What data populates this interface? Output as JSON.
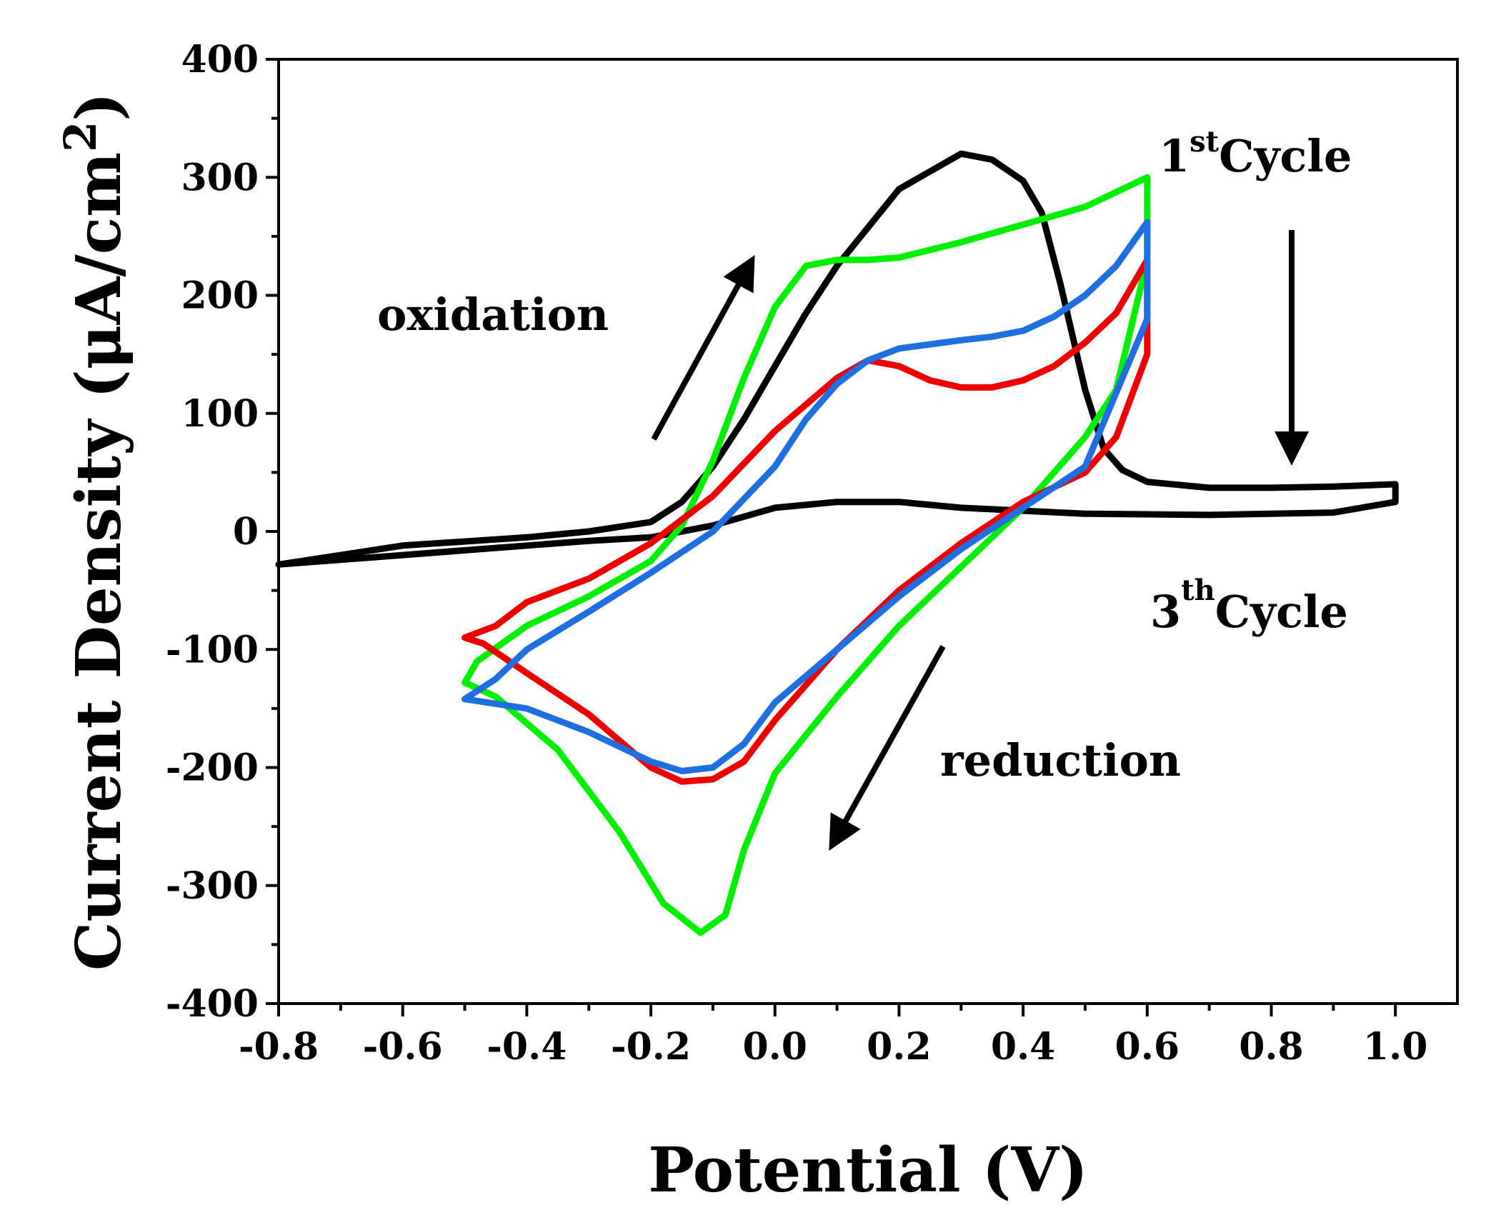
{
  "chart_data": {
    "type": "line",
    "title": "",
    "xlabel": "Potential (V)",
    "ylabel": "Current Density (μA/cm²)",
    "ylabel_parts": {
      "main": "Current Density (μA/cm",
      "sup": "2",
      "close": ")"
    },
    "xlim": [
      -0.8,
      1.1
    ],
    "ylim": [
      -400,
      400
    ],
    "x_ticks": [
      -0.8,
      -0.6,
      -0.4,
      -0.2,
      0.0,
      0.2,
      0.4,
      0.6,
      0.8,
      1.0
    ],
    "x_tick_labels": [
      "-0.8",
      "-0.6",
      "-0.4",
      "-0.2",
      "0.0",
      "0.2",
      "0.4",
      "0.6",
      "0.8",
      "1.0"
    ],
    "y_ticks": [
      -400,
      -300,
      -200,
      -100,
      0,
      100,
      200,
      300,
      400
    ],
    "y_tick_labels": [
      "-400",
      "-300",
      "-200",
      "-100",
      "0",
      "100",
      "200",
      "300",
      "400"
    ],
    "grid": false,
    "series": [
      {
        "name": "black",
        "color": "#000000",
        "x": [
          -0.8,
          -0.6,
          -0.4,
          -0.3,
          -0.2,
          -0.15,
          -0.1,
          -0.05,
          0.0,
          0.05,
          0.1,
          0.2,
          0.3,
          0.35,
          0.4,
          0.43,
          0.46,
          0.5,
          0.53,
          0.56,
          0.6,
          0.7,
          0.8,
          0.9,
          1.0,
          1.0,
          0.9,
          0.7,
          0.5,
          0.3,
          0.2,
          0.1,
          0.0,
          -0.1,
          -0.2,
          -0.3,
          -0.4,
          -0.6,
          -0.8
        ],
        "y": [
          -28,
          -12,
          -5,
          0,
          8,
          25,
          55,
          95,
          140,
          185,
          225,
          290,
          320,
          315,
          297,
          270,
          210,
          120,
          70,
          52,
          42,
          37,
          37,
          38,
          40,
          25,
          16,
          14,
          15,
          20,
          25,
          25,
          20,
          5,
          -5,
          -8,
          -12,
          -20,
          -28
        ]
      },
      {
        "name": "green",
        "color": "#00ee00",
        "x": [
          -0.5,
          -0.48,
          -0.4,
          -0.3,
          -0.2,
          -0.15,
          -0.1,
          -0.05,
          0.0,
          0.05,
          0.1,
          0.15,
          0.2,
          0.3,
          0.4,
          0.5,
          0.6,
          0.6,
          0.55,
          0.5,
          0.4,
          0.3,
          0.2,
          0.1,
          0.0,
          -0.05,
          -0.08,
          -0.12,
          -0.18,
          -0.25,
          -0.35,
          -0.45,
          -0.5
        ],
        "y": [
          -128,
          -110,
          -80,
          -55,
          -25,
          5,
          60,
          130,
          190,
          225,
          230,
          230,
          232,
          245,
          260,
          275,
          300,
          230,
          120,
          80,
          20,
          -30,
          -80,
          -140,
          -205,
          -270,
          -325,
          -340,
          -315,
          -255,
          -185,
          -140,
          -128
        ]
      },
      {
        "name": "red",
        "color": "#ee0000",
        "x": [
          -0.5,
          -0.45,
          -0.4,
          -0.3,
          -0.2,
          -0.1,
          0.0,
          0.1,
          0.15,
          0.2,
          0.25,
          0.3,
          0.35,
          0.4,
          0.45,
          0.5,
          0.55,
          0.6,
          0.6,
          0.55,
          0.5,
          0.4,
          0.3,
          0.2,
          0.1,
          0.0,
          -0.05,
          -0.1,
          -0.15,
          -0.2,
          -0.3,
          -0.4,
          -0.47,
          -0.5
        ],
        "y": [
          -90,
          -80,
          -60,
          -40,
          -10,
          30,
          85,
          130,
          145,
          140,
          128,
          122,
          122,
          128,
          140,
          160,
          185,
          230,
          150,
          80,
          50,
          25,
          -10,
          -50,
          -100,
          -160,
          -195,
          -210,
          -212,
          -200,
          -155,
          -120,
          -95,
          -90
        ]
      },
      {
        "name": "blue",
        "color": "#1f6fe0",
        "x": [
          -0.5,
          -0.45,
          -0.4,
          -0.3,
          -0.2,
          -0.1,
          0.0,
          0.05,
          0.1,
          0.15,
          0.2,
          0.3,
          0.35,
          0.4,
          0.45,
          0.5,
          0.55,
          0.6,
          0.6,
          0.5,
          0.4,
          0.3,
          0.2,
          0.1,
          0.0,
          -0.05,
          -0.1,
          -0.15,
          -0.2,
          -0.3,
          -0.4,
          -0.5
        ],
        "y": [
          -142,
          -125,
          -100,
          -68,
          -35,
          0,
          55,
          95,
          125,
          145,
          155,
          162,
          165,
          170,
          182,
          200,
          225,
          262,
          180,
          55,
          20,
          -15,
          -55,
          -100,
          -145,
          -180,
          -200,
          -203,
          -195,
          -170,
          -150,
          -142
        ]
      }
    ],
    "annotations": {
      "oxidation": "oxidation",
      "reduction": "reduction",
      "first_cycle_num": "1",
      "first_cycle_sup": "st",
      "first_cycle_word": "Cycle",
      "third_cycle_num": "3",
      "third_cycle_sup": "th",
      "third_cycle_word": "Cycle"
    }
  }
}
